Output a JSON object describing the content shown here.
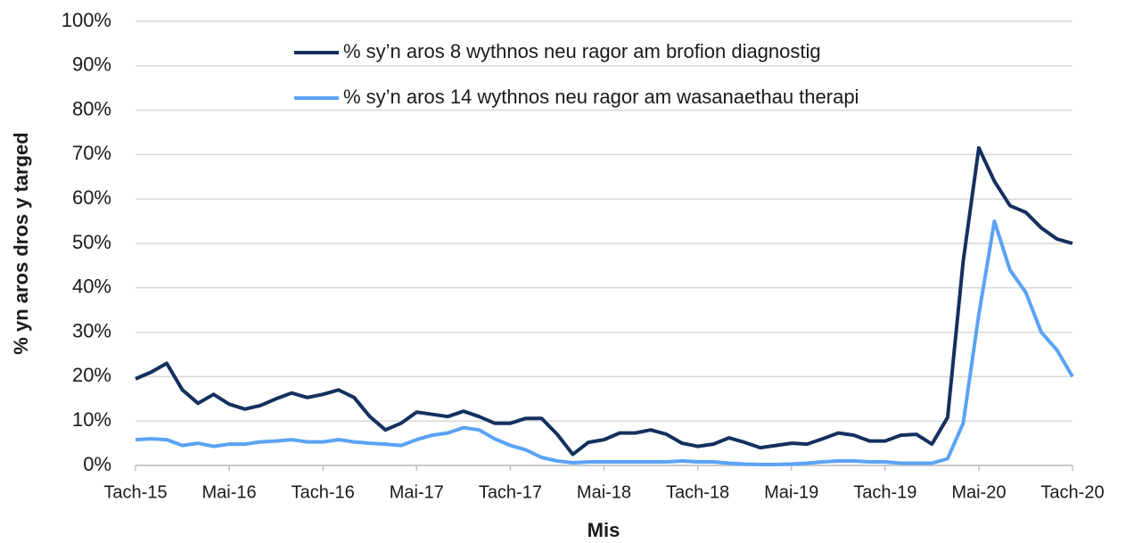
{
  "chart_data": {
    "type": "line",
    "y_label": "% yn aros dros y targed",
    "x_label": "Mis",
    "categories": [
      "Tach-15",
      null,
      null,
      null,
      null,
      null,
      "Mai-16",
      null,
      null,
      null,
      null,
      null,
      "Tach-16",
      null,
      null,
      null,
      null,
      null,
      "Mai-17",
      null,
      null,
      null,
      null,
      null,
      "Tach-17",
      null,
      null,
      null,
      null,
      null,
      "Mai-18",
      null,
      null,
      null,
      null,
      null,
      "Tach-18",
      null,
      null,
      null,
      null,
      null,
      "Mai-19",
      null,
      null,
      null,
      null,
      null,
      "Tach-19",
      null,
      null,
      null,
      null,
      null,
      "Mai-20",
      null,
      null,
      null,
      null,
      null,
      "Tach-20"
    ],
    "series": [
      {
        "name": "% sy’n aros 8 wythnos neu ragor am brofion diagnostig",
        "color": "#14305f",
        "values": [
          19.5,
          21,
          23,
          17,
          14,
          16,
          13.8,
          12.7,
          13.5,
          15,
          16.3,
          15.3,
          16,
          17,
          15.3,
          11,
          8,
          9.5,
          12,
          11.5,
          11,
          12.2,
          11,
          9.5,
          9.5,
          10.6,
          10.6,
          7,
          2.5,
          5.2,
          5.8,
          7.3,
          7.3,
          8,
          7,
          5,
          4.3,
          4.8,
          6.2,
          5.2,
          4,
          4.5,
          5,
          4.8,
          6,
          7.3,
          6.8,
          5.5,
          5.5,
          6.8,
          7,
          4.8,
          10.8,
          46,
          71.5,
          64,
          58.5,
          57,
          53.5,
          51,
          50
        ]
      },
      {
        "name": "% sy’n aros 14 wythnos neu ragor am wasanaethau therapi",
        "color": "#5aa3f5",
        "values": [
          5.8,
          6,
          5.8,
          4.5,
          5,
          4.3,
          4.8,
          4.8,
          5.3,
          5.5,
          5.8,
          5.3,
          5.3,
          5.8,
          5.3,
          5,
          4.8,
          4.5,
          5.8,
          6.8,
          7.3,
          8.5,
          8,
          6,
          4.5,
          3.5,
          1.8,
          1,
          0.6,
          0.8,
          0.8,
          0.8,
          0.8,
          0.8,
          0.8,
          1,
          0.8,
          0.8,
          0.5,
          0.3,
          0.2,
          0.2,
          0.3,
          0.5,
          0.8,
          1,
          1,
          0.8,
          0.8,
          0.5,
          0.5,
          0.5,
          1.5,
          9.5,
          34,
          55,
          44,
          39,
          30,
          26,
          20
        ]
      }
    ],
    "ylim": [
      0,
      100
    ],
    "yticks": [
      {
        "value": 0,
        "label": "0%"
      },
      {
        "value": 10,
        "label": "10%"
      },
      {
        "value": 20,
        "label": "20%"
      },
      {
        "value": 30,
        "label": "30%"
      },
      {
        "value": 40,
        "label": "40%"
      },
      {
        "value": 50,
        "label": "50%"
      },
      {
        "value": 60,
        "label": "60%"
      },
      {
        "value": 70,
        "label": "70%"
      },
      {
        "value": 80,
        "label": "80%"
      },
      {
        "value": 90,
        "label": "90%"
      },
      {
        "value": 100,
        "label": "100%"
      }
    ],
    "grid": true,
    "legend": "top"
  }
}
